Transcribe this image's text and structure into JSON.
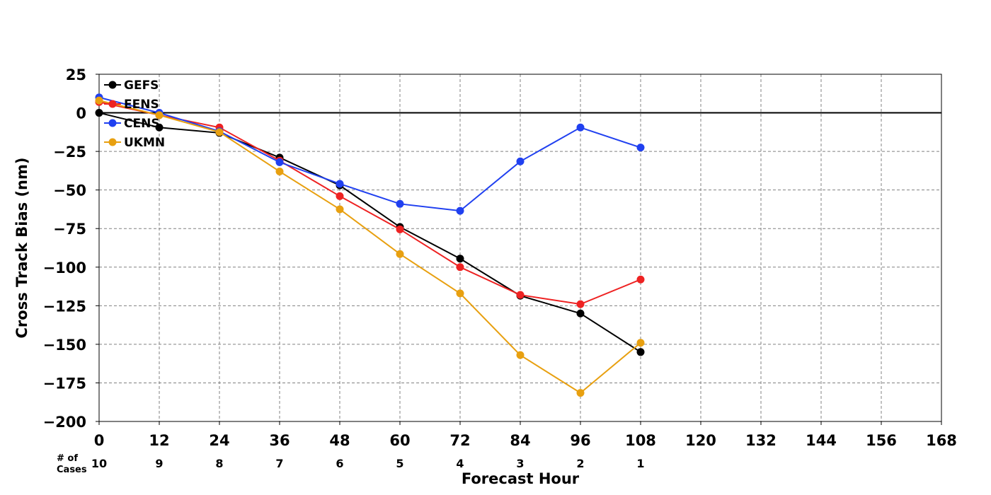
{
  "chart_data": {
    "type": "line",
    "title": "",
    "xlabel": "Forecast Hour",
    "ylabel": "Cross Track Bias (nm)",
    "xlim": [
      0,
      168
    ],
    "ylim": [
      -200,
      25
    ],
    "x_ticks": [
      0,
      12,
      24,
      36,
      48,
      60,
      72,
      84,
      96,
      108,
      120,
      132,
      144,
      156,
      168
    ],
    "y_ticks": [
      25,
      0,
      -25,
      -50,
      -75,
      -100,
      -125,
      -150,
      -175,
      -200
    ],
    "grid": true,
    "zero_line": true,
    "legend_position": "top-left",
    "cases_caption": [
      "# of",
      "Cases"
    ],
    "cases": {
      "x": [
        0,
        12,
        24,
        36,
        48,
        60,
        72,
        84,
        96,
        108
      ],
      "values": [
        "10",
        "9",
        "8",
        "7",
        "6",
        "5",
        "4",
        "3",
        "2",
        "1"
      ]
    },
    "x": [
      0,
      12,
      24,
      36,
      48,
      60,
      72,
      84,
      96,
      108
    ],
    "series": [
      {
        "name": "GEFS",
        "color": "#000000",
        "values": [
          0,
          -9.5,
          -13,
          -29,
          -47,
          -74,
          -94.5,
          -118.5,
          -130,
          -155
        ]
      },
      {
        "name": "EENS",
        "color": "#ee2222",
        "values": [
          7,
          -1.5,
          -9.5,
          -31,
          -54,
          -75.5,
          -100,
          -118,
          -124,
          -108
        ]
      },
      {
        "name": "CENS",
        "color": "#2040f0",
        "values": [
          10,
          0,
          -12,
          -32,
          -46,
          -59,
          -63.5,
          -31.5,
          -9.5,
          -22.5
        ]
      },
      {
        "name": "UKMN",
        "color": "#e8a010",
        "values": [
          8,
          -1.5,
          -12.5,
          -38,
          -62.5,
          -91.5,
          -117,
          -157,
          -181.5,
          -149
        ]
      }
    ]
  }
}
